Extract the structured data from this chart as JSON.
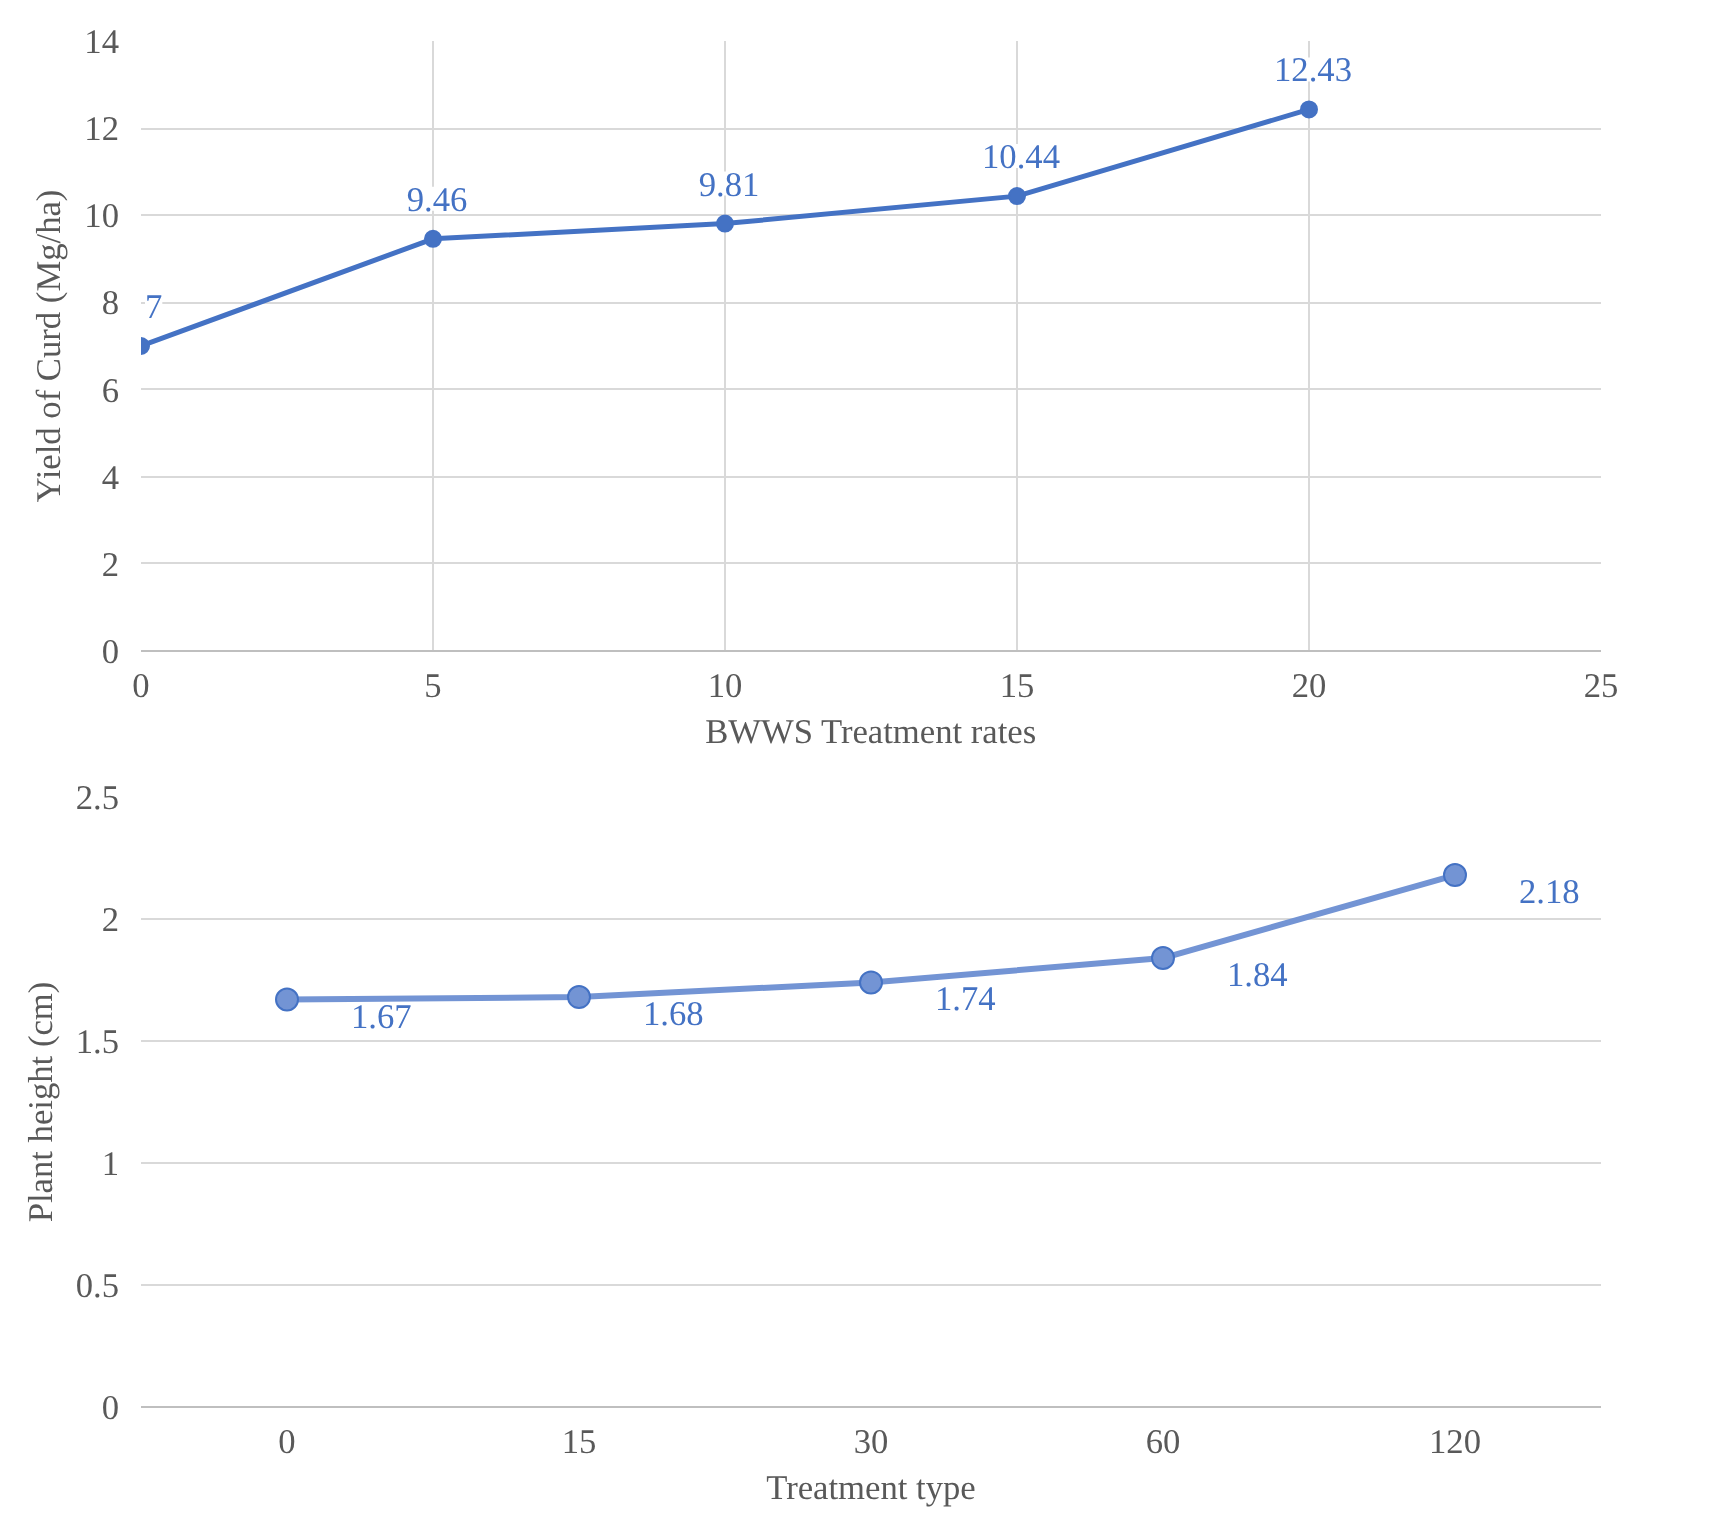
{
  "chart_data": [
    {
      "type": "line",
      "x": [
        0,
        5,
        10,
        15,
        20
      ],
      "xlabel": "BWWS Treatment rates",
      "ylabel": "Yield of Curd (Mg/ha)",
      "series": [
        {
          "color": "#4472c4",
          "values": [
            7,
            9.46,
            9.81,
            10.44,
            12.43
          ]
        }
      ],
      "xlim": [
        0,
        25
      ],
      "xticks": [
        0,
        5,
        10,
        15,
        20,
        25
      ],
      "ylim": [
        0,
        14
      ],
      "yticks": [
        0,
        2,
        4,
        6,
        8,
        10,
        12,
        14
      ],
      "grid": true,
      "marker": "circle",
      "data_labels": true
    },
    {
      "type": "line",
      "categories": [
        "0",
        "15",
        "30",
        "60",
        "120"
      ],
      "xlabel": "Treatment type",
      "ylabel": "Plant height (cm)",
      "series": [
        {
          "color": "#7394d4",
          "values": [
            1.67,
            1.68,
            1.74,
            1.84,
            2.18
          ]
        }
      ],
      "ylim": [
        0,
        2.5
      ],
      "yticks": [
        0,
        0.5,
        1,
        1.5,
        2,
        2.5
      ],
      "grid": "y",
      "marker": "circle",
      "data_labels": true
    }
  ]
}
